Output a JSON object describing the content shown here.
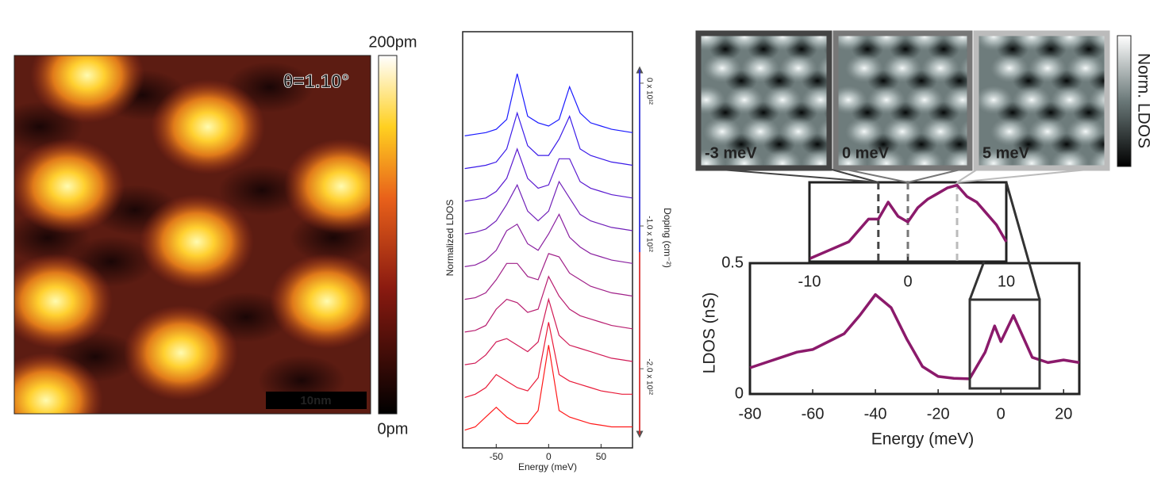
{
  "chart_data": [
    {
      "type": "heatmap",
      "annotation": "θ=1.10°",
      "scale_bar": "10nm",
      "colorbar_labels": [
        "200pm",
        "0pm"
      ]
    },
    {
      "type": "waterfall",
      "xlabel": "Energy (meV)",
      "ylabel": "Normalized LDOS",
      "y2label": "Doping (cm⁻²)",
      "x": [
        -80,
        -70,
        -60,
        -50,
        -40,
        -30,
        -20,
        -10,
        0,
        10,
        20,
        30,
        40,
        50,
        60,
        70,
        80
      ],
      "xlim": [
        -82,
        80
      ],
      "xticks": [
        -50,
        0,
        50
      ],
      "ylim": [
        0,
        12
      ],
      "y2lim": [
        -2.46,
        0.094
      ],
      "y2ticks": [
        {
          "value": 0,
          "label": "0 x 10¹²"
        },
        {
          "value": -1,
          "label": "-1.0 x 10¹²"
        },
        {
          "value": -2,
          "label": "-2.0 x 10¹²"
        }
      ],
      "series": [
        {
          "color": "#1a1aff",
          "values": [
            9.3,
            9.35,
            9.4,
            9.5,
            9.8,
            11.2,
            9.9,
            9.7,
            9.6,
            9.8,
            10.8,
            10.0,
            9.7,
            9.6,
            9.5,
            9.45,
            9.4
          ]
        },
        {
          "color": "#3a1ae8",
          "values": [
            8.3,
            8.35,
            8.4,
            8.5,
            8.9,
            10.0,
            9.0,
            8.7,
            8.7,
            9.2,
            9.9,
            8.9,
            8.7,
            8.6,
            8.5,
            8.45,
            8.4
          ]
        },
        {
          "color": "#5a1ad0",
          "values": [
            7.3,
            7.35,
            7.4,
            7.6,
            8.0,
            8.9,
            8.0,
            7.7,
            7.8,
            8.6,
            8.6,
            7.9,
            7.7,
            7.6,
            7.5,
            7.45,
            7.4
          ]
        },
        {
          "color": "#7020b8",
          "values": [
            6.3,
            6.35,
            6.45,
            6.7,
            7.2,
            7.8,
            7.0,
            6.7,
            7.0,
            7.9,
            7.4,
            6.9,
            6.7,
            6.6,
            6.5,
            6.45,
            6.4
          ]
        },
        {
          "color": "#8a20a0",
          "values": [
            5.3,
            5.35,
            5.5,
            5.8,
            6.4,
            6.6,
            6.0,
            5.8,
            6.3,
            6.9,
            6.2,
            5.9,
            5.7,
            5.6,
            5.5,
            5.45,
            5.4
          ]
        },
        {
          "color": "#a02088",
          "values": [
            4.3,
            4.35,
            4.5,
            4.9,
            5.4,
            5.4,
            5.0,
            4.9,
            5.7,
            5.6,
            5.1,
            4.9,
            4.7,
            4.6,
            4.5,
            4.45,
            4.4
          ]
        },
        {
          "color": "#b81e70",
          "values": [
            3.3,
            3.35,
            3.5,
            4.0,
            4.3,
            4.2,
            3.9,
            4.0,
            5.0,
            4.4,
            4.0,
            3.8,
            3.7,
            3.6,
            3.5,
            3.45,
            3.4
          ]
        },
        {
          "color": "#d01a55",
          "values": [
            2.3,
            2.35,
            2.6,
            3.0,
            3.1,
            2.9,
            2.7,
            3.0,
            4.3,
            3.2,
            2.9,
            2.8,
            2.7,
            2.6,
            2.5,
            2.45,
            2.4
          ]
        },
        {
          "color": "#e81a38",
          "values": [
            1.3,
            1.4,
            1.6,
            2.0,
            1.8,
            1.6,
            1.5,
            1.9,
            3.6,
            2.0,
            1.8,
            1.7,
            1.6,
            1.5,
            1.45,
            1.4,
            1.4
          ]
        },
        {
          "color": "#ff1a1a",
          "values": [
            0.3,
            0.4,
            0.7,
            1.0,
            0.7,
            0.5,
            0.5,
            0.9,
            2.9,
            0.9,
            0.7,
            0.6,
            0.5,
            0.45,
            0.4,
            0.4,
            0.4
          ]
        }
      ]
    },
    {
      "type": "line",
      "xlabel": "Energy (meV)",
      "ylabel": "LDOS (nS)",
      "color": "#8b1a6b",
      "x": [
        -80,
        -75,
        -70,
        -65,
        -60,
        -55,
        -50,
        -45,
        -40,
        -35,
        -30,
        -25,
        -20,
        -15,
        -10,
        -5,
        -2,
        0,
        4,
        10,
        15,
        20,
        25
      ],
      "values": [
        0.1,
        0.12,
        0.14,
        0.16,
        0.17,
        0.2,
        0.23,
        0.3,
        0.38,
        0.33,
        0.21,
        0.105,
        0.067,
        0.06,
        0.058,
        0.16,
        0.26,
        0.2,
        0.3,
        0.14,
        0.12,
        0.13,
        0.12
      ],
      "xlim": [
        -80,
        25
      ],
      "xticks": [
        -80,
        -60,
        -40,
        -20,
        0,
        20
      ],
      "ylim": [
        0,
        0.5
      ],
      "yticks": [
        0,
        0.5
      ]
    },
    {
      "type": "line",
      "color": "#8b1a6b",
      "x": [
        -10,
        -8,
        -6,
        -4,
        -3,
        -2,
        -1,
        0,
        1,
        2,
        3,
        4,
        5,
        6,
        7,
        8,
        9,
        10
      ],
      "values": [
        0.06,
        0.09,
        0.12,
        0.2,
        0.2,
        0.26,
        0.21,
        0.19,
        0.24,
        0.27,
        0.29,
        0.31,
        0.32,
        0.28,
        0.26,
        0.22,
        0.18,
        0.12
      ],
      "xlim": [
        -10,
        10
      ],
      "xticks": [
        -10,
        0,
        10
      ],
      "ylim": [
        0.05,
        0.33
      ],
      "markers": [
        -3,
        0,
        5
      ],
      "marker_colors": [
        "#444444",
        "#777777",
        "#bbbbbb"
      ]
    },
    {
      "type": "maps",
      "labels": [
        "-3 meV",
        "0 meV",
        "5 meV"
      ],
      "border_colors": [
        "#444444",
        "#777777",
        "#bbbbbb"
      ],
      "colorbar_label": "Norm. LDOS"
    }
  ]
}
